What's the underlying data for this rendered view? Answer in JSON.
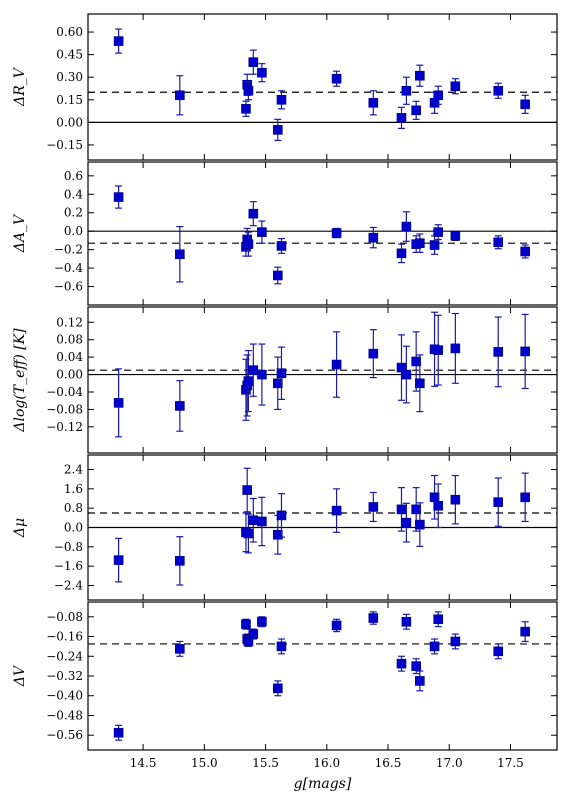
{
  "chart_data": [
    {
      "type": "scatter",
      "ylabel": "ΔR_V",
      "ylim": [
        -0.25,
        0.72
      ],
      "yticks": [
        -0.15,
        0.0,
        0.15,
        0.3,
        0.45,
        0.6
      ],
      "ytick_labels": [
        "−0.15",
        "0.00",
        "0.15",
        "0.30",
        "0.45",
        "0.60"
      ],
      "hlines": [
        {
          "y": 0.0,
          "style": "solid"
        },
        {
          "y": 0.2,
          "style": "dashed"
        }
      ],
      "points": [
        {
          "x": 14.3,
          "y": 0.54,
          "err": 0.08
        },
        {
          "x": 14.8,
          "y": 0.18,
          "err": 0.13
        },
        {
          "x": 15.34,
          "y": 0.09,
          "err": 0.05
        },
        {
          "x": 15.35,
          "y": 0.25,
          "err": 0.07
        },
        {
          "x": 15.36,
          "y": 0.21,
          "err": 0.06
        },
        {
          "x": 15.4,
          "y": 0.4,
          "err": 0.08
        },
        {
          "x": 15.47,
          "y": 0.33,
          "err": 0.06
        },
        {
          "x": 15.6,
          "y": -0.05,
          "err": 0.07
        },
        {
          "x": 15.63,
          "y": 0.15,
          "err": 0.06
        },
        {
          "x": 16.08,
          "y": 0.29,
          "err": 0.05
        },
        {
          "x": 16.38,
          "y": 0.13,
          "err": 0.08
        },
        {
          "x": 16.61,
          "y": 0.03,
          "err": 0.07
        },
        {
          "x": 16.65,
          "y": 0.21,
          "err": 0.09
        },
        {
          "x": 16.73,
          "y": 0.08,
          "err": 0.06
        },
        {
          "x": 16.76,
          "y": 0.31,
          "err": 0.07
        },
        {
          "x": 16.88,
          "y": 0.13,
          "err": 0.07
        },
        {
          "x": 16.91,
          "y": 0.18,
          "err": 0.06
        },
        {
          "x": 17.05,
          "y": 0.24,
          "err": 0.05
        },
        {
          "x": 17.4,
          "y": 0.21,
          "err": 0.05
        },
        {
          "x": 17.62,
          "y": 0.12,
          "err": 0.06
        }
      ]
    },
    {
      "type": "scatter",
      "ylabel": "ΔA_V",
      "ylim": [
        -0.8,
        0.75
      ],
      "yticks": [
        -0.6,
        -0.4,
        -0.2,
        0.0,
        0.2,
        0.4,
        0.6
      ],
      "ytick_labels": [
        "−0.6",
        "−0.4",
        "−0.2",
        "0.0",
        "0.2",
        "0.4",
        "0.6"
      ],
      "hlines": [
        {
          "y": 0.0,
          "style": "solid"
        },
        {
          "y": -0.13,
          "style": "dashed"
        }
      ],
      "points": [
        {
          "x": 14.3,
          "y": 0.37,
          "err": 0.12
        },
        {
          "x": 14.8,
          "y": -0.25,
          "err": 0.3
        },
        {
          "x": 15.34,
          "y": -0.17,
          "err": 0.1
        },
        {
          "x": 15.35,
          "y": -0.09,
          "err": 0.12
        },
        {
          "x": 15.36,
          "y": -0.14,
          "err": 0.13
        },
        {
          "x": 15.4,
          "y": 0.19,
          "err": 0.13
        },
        {
          "x": 15.47,
          "y": -0.01,
          "err": 0.12
        },
        {
          "x": 15.6,
          "y": -0.48,
          "err": 0.09
        },
        {
          "x": 15.63,
          "y": -0.16,
          "err": 0.08
        },
        {
          "x": 16.08,
          "y": -0.02,
          "err": 0.05
        },
        {
          "x": 16.38,
          "y": -0.07,
          "err": 0.11
        },
        {
          "x": 16.61,
          "y": -0.24,
          "err": 0.1
        },
        {
          "x": 16.65,
          "y": 0.05,
          "err": 0.16
        },
        {
          "x": 16.73,
          "y": -0.14,
          "err": 0.09
        },
        {
          "x": 16.76,
          "y": -0.13,
          "err": 0.1
        },
        {
          "x": 16.88,
          "y": -0.15,
          "err": 0.1
        },
        {
          "x": 16.91,
          "y": -0.01,
          "err": 0.08
        },
        {
          "x": 17.05,
          "y": -0.05,
          "err": 0.05
        },
        {
          "x": 17.4,
          "y": -0.12,
          "err": 0.07
        },
        {
          "x": 17.62,
          "y": -0.22,
          "err": 0.07
        }
      ]
    },
    {
      "type": "scatter",
      "ylabel": "Δlog(T_eff) [K]",
      "ylim": [
        -0.18,
        0.155
      ],
      "yticks": [
        -0.12,
        -0.08,
        -0.04,
        0.0,
        0.04,
        0.08,
        0.12
      ],
      "ytick_labels": [
        "−0.12",
        "−0.08",
        "−0.04",
        "0.00",
        "0.04",
        "0.08",
        "0.12"
      ],
      "hlines": [
        {
          "y": 0.0,
          "style": "solid"
        },
        {
          "y": 0.01,
          "style": "dashed"
        }
      ],
      "points": [
        {
          "x": 14.3,
          "y": -0.065,
          "err": 0.078
        },
        {
          "x": 14.8,
          "y": -0.072,
          "err": 0.058
        },
        {
          "x": 15.34,
          "y": -0.035,
          "err": 0.07
        },
        {
          "x": 15.35,
          "y": -0.025,
          "err": 0.07
        },
        {
          "x": 15.36,
          "y": -0.015,
          "err": 0.07
        },
        {
          "x": 15.4,
          "y": 0.01,
          "err": 0.06
        },
        {
          "x": 15.47,
          "y": 0.0,
          "err": 0.07
        },
        {
          "x": 15.6,
          "y": -0.02,
          "err": 0.06
        },
        {
          "x": 15.63,
          "y": 0.003,
          "err": 0.06
        },
        {
          "x": 16.08,
          "y": 0.023,
          "err": 0.075
        },
        {
          "x": 16.38,
          "y": 0.048,
          "err": 0.055
        },
        {
          "x": 16.61,
          "y": 0.016,
          "err": 0.075
        },
        {
          "x": 16.65,
          "y": 0.0,
          "err": 0.065
        },
        {
          "x": 16.73,
          "y": 0.03,
          "err": 0.068
        },
        {
          "x": 16.76,
          "y": -0.02,
          "err": 0.065
        },
        {
          "x": 16.88,
          "y": 0.058,
          "err": 0.085
        },
        {
          "x": 16.91,
          "y": 0.056,
          "err": 0.08
        },
        {
          "x": 17.05,
          "y": 0.06,
          "err": 0.08
        },
        {
          "x": 17.4,
          "y": 0.052,
          "err": 0.08
        },
        {
          "x": 17.62,
          "y": 0.053,
          "err": 0.085
        }
      ]
    },
    {
      "type": "scatter",
      "ylabel": "Δμ",
      "ylim": [
        -3.0,
        3.0
      ],
      "yticks": [
        -2.4,
        -1.6,
        -0.8,
        0.0,
        0.8,
        1.6,
        2.4
      ],
      "ytick_labels": [
        "−2.4",
        "−1.6",
        "−0.8",
        "0.0",
        "0.8",
        "1.6",
        "2.4"
      ],
      "hlines": [
        {
          "y": 0.0,
          "style": "solid"
        },
        {
          "y": 0.6,
          "style": "dashed"
        }
      ],
      "points": [
        {
          "x": 14.3,
          "y": -1.35,
          "err": 0.9
        },
        {
          "x": 14.8,
          "y": -1.38,
          "err": 1.0
        },
        {
          "x": 15.34,
          "y": -0.2,
          "err": 0.8
        },
        {
          "x": 15.35,
          "y": 1.55,
          "err": 0.9
        },
        {
          "x": 15.36,
          "y": -0.25,
          "err": 0.8
        },
        {
          "x": 15.4,
          "y": 0.3,
          "err": 0.9
        },
        {
          "x": 15.47,
          "y": 0.25,
          "err": 1.0
        },
        {
          "x": 15.6,
          "y": -0.3,
          "err": 0.8
        },
        {
          "x": 15.63,
          "y": 0.5,
          "err": 0.9
        },
        {
          "x": 16.08,
          "y": 0.7,
          "err": 0.9
        },
        {
          "x": 16.38,
          "y": 0.85,
          "err": 0.6
        },
        {
          "x": 16.61,
          "y": 0.75,
          "err": 0.9
        },
        {
          "x": 16.65,
          "y": 0.2,
          "err": 0.8
        },
        {
          "x": 16.73,
          "y": 0.75,
          "err": 0.9
        },
        {
          "x": 16.76,
          "y": 0.12,
          "err": 0.9
        },
        {
          "x": 16.88,
          "y": 1.25,
          "err": 0.9
        },
        {
          "x": 16.91,
          "y": 0.9,
          "err": 0.9
        },
        {
          "x": 17.05,
          "y": 1.15,
          "err": 1.0
        },
        {
          "x": 17.4,
          "y": 1.05,
          "err": 1.0
        },
        {
          "x": 17.62,
          "y": 1.25,
          "err": 1.0
        }
      ]
    },
    {
      "type": "scatter",
      "ylabel": "ΔV",
      "xlabel": "g[mags]",
      "ylim": [
        -0.62,
        -0.02
      ],
      "yticks": [
        -0.56,
        -0.48,
        -0.4,
        -0.32,
        -0.24,
        -0.16,
        -0.08
      ],
      "ytick_labels": [
        "−0.56",
        "−0.48",
        "−0.40",
        "−0.32",
        "−0.24",
        "−0.16",
        "−0.08"
      ],
      "hlines": [
        {
          "y": -0.19,
          "style": "dashed"
        }
      ],
      "points": [
        {
          "x": 14.3,
          "y": -0.55,
          "err": 0.03
        },
        {
          "x": 14.8,
          "y": -0.21,
          "err": 0.03
        },
        {
          "x": 15.34,
          "y": -0.11,
          "err": 0.02
        },
        {
          "x": 15.35,
          "y": -0.17,
          "err": 0.02
        },
        {
          "x": 15.36,
          "y": -0.18,
          "err": 0.02
        },
        {
          "x": 15.4,
          "y": -0.15,
          "err": 0.02
        },
        {
          "x": 15.47,
          "y": -0.1,
          "err": 0.02
        },
        {
          "x": 15.6,
          "y": -0.37,
          "err": 0.03
        },
        {
          "x": 15.63,
          "y": -0.2,
          "err": 0.03
        },
        {
          "x": 16.08,
          "y": -0.115,
          "err": 0.025
        },
        {
          "x": 16.38,
          "y": -0.085,
          "err": 0.025
        },
        {
          "x": 16.61,
          "y": -0.27,
          "err": 0.03
        },
        {
          "x": 16.65,
          "y": -0.1,
          "err": 0.03
        },
        {
          "x": 16.73,
          "y": -0.28,
          "err": 0.03
        },
        {
          "x": 16.76,
          "y": -0.34,
          "err": 0.04
        },
        {
          "x": 16.88,
          "y": -0.2,
          "err": 0.03
        },
        {
          "x": 16.91,
          "y": -0.09,
          "err": 0.03
        },
        {
          "x": 17.05,
          "y": -0.18,
          "err": 0.03
        },
        {
          "x": 17.4,
          "y": -0.22,
          "err": 0.03
        },
        {
          "x": 17.62,
          "y": -0.14,
          "err": 0.04
        }
      ]
    }
  ],
  "xaxis": {
    "label": "g[mags]",
    "xlim": [
      14.05,
      17.88
    ],
    "ticks": [
      14.5,
      15.0,
      15.5,
      16.0,
      16.5,
      17.0,
      17.5
    ],
    "tick_labels": [
      "14.5",
      "15.0",
      "15.5",
      "16.0",
      "16.5",
      "17.0",
      "17.5"
    ]
  },
  "colors": {
    "marker": "#0000cc",
    "errorbar": "#1a1aaa",
    "frame": "#000000"
  }
}
